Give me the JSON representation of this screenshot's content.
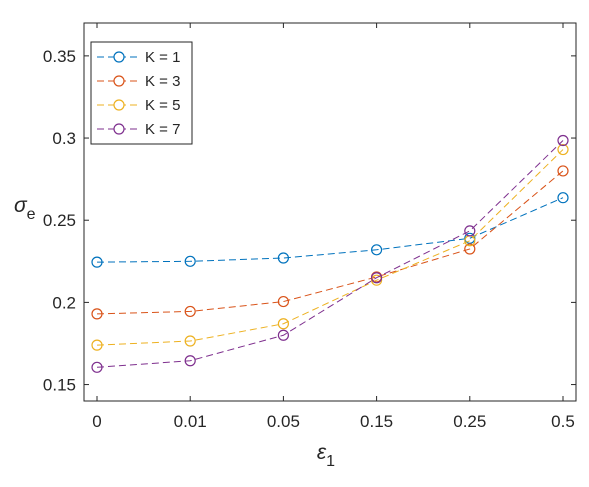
{
  "chart_data": {
    "type": "line",
    "categories": [
      "0",
      "0.01",
      "0.05",
      "0.15",
      "0.25",
      "0.5"
    ],
    "xlabel": "ε",
    "xlabel_sub": "1",
    "ylabel": "σ",
    "ylabel_sub": "e",
    "ylim": [
      0.14,
      0.37
    ],
    "yticks": [
      0.15,
      0.2,
      0.25,
      0.3,
      0.35
    ],
    "ytick_labels": [
      "0.15",
      "0.2",
      "0.25",
      "0.3",
      "0.35"
    ],
    "grid": false,
    "legend_position": "top-left",
    "marker": "open-circle",
    "line_style": "dashed",
    "series": [
      {
        "name": "K = 1",
        "color": "#0072BD",
        "values": [
          0.2245,
          0.225,
          0.227,
          0.232,
          0.239,
          0.2637
        ]
      },
      {
        "name": "K = 3",
        "color": "#D95319",
        "values": [
          0.193,
          0.1945,
          0.2005,
          0.2155,
          0.2325,
          0.28
        ]
      },
      {
        "name": "K = 5",
        "color": "#EDB120",
        "values": [
          0.174,
          0.1765,
          0.187,
          0.2135,
          0.2375,
          0.293
        ]
      },
      {
        "name": "K = 7",
        "color": "#7E2F8E",
        "values": [
          0.1605,
          0.1645,
          0.18,
          0.215,
          0.2435,
          0.2985
        ]
      }
    ]
  }
}
